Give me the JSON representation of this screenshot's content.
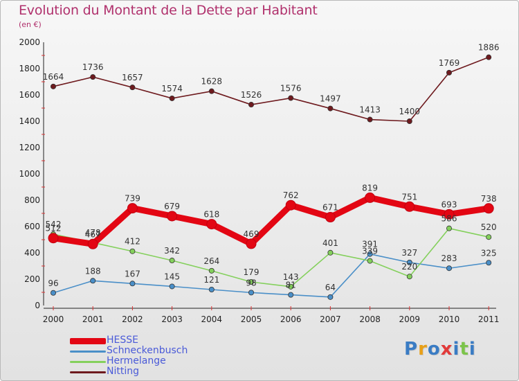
{
  "chart_data": {
    "type": "line",
    "title": "Evolution du Montant de la Dette par Habitant",
    "subtitle": "(en €)",
    "xlabel": "",
    "ylabel": "",
    "ylim": [
      0,
      2000
    ],
    "yticks": [
      0,
      200,
      400,
      600,
      800,
      1000,
      1200,
      1400,
      1600,
      1800,
      2000
    ],
    "categories": [
      "2000",
      "2001",
      "2002",
      "2003",
      "2004",
      "2005",
      "2006",
      "2007",
      "2008",
      "2009",
      "2010",
      "2011"
    ],
    "grid": false,
    "legend_position": "bottom-left",
    "series": [
      {
        "name": "HESSE",
        "color": "#e30613",
        "emphasis": "thick",
        "values": [
          512,
          467,
          739,
          679,
          618,
          469,
          762,
          671,
          819,
          751,
          693,
          738
        ]
      },
      {
        "name": "Schneckenbusch",
        "color": "#4a8fc8",
        "emphasis": "normal",
        "values": [
          96,
          188,
          167,
          145,
          121,
          98,
          81,
          64,
          391,
          327,
          283,
          325
        ]
      },
      {
        "name": "Hermelange",
        "color": "#84d05c",
        "emphasis": "normal",
        "values": [
          542,
          478,
          412,
          342,
          264,
          179,
          143,
          401,
          339,
          220,
          586,
          520
        ]
      },
      {
        "name": "Nitting",
        "color": "#6e1a1e",
        "emphasis": "normal",
        "values": [
          1664,
          1736,
          1657,
          1574,
          1628,
          1526,
          1576,
          1497,
          1413,
          1400,
          1769,
          1886
        ]
      }
    ]
  },
  "logo": {
    "letters": [
      "P",
      "r",
      "o",
      "x",
      "i",
      "t",
      "i"
    ],
    "colors": [
      "#3a7cc4",
      "#e8a018",
      "#3a7cc4",
      "#e23a3a",
      "#3a7cc4",
      "#7cc44a",
      "#3a7cc4"
    ]
  }
}
